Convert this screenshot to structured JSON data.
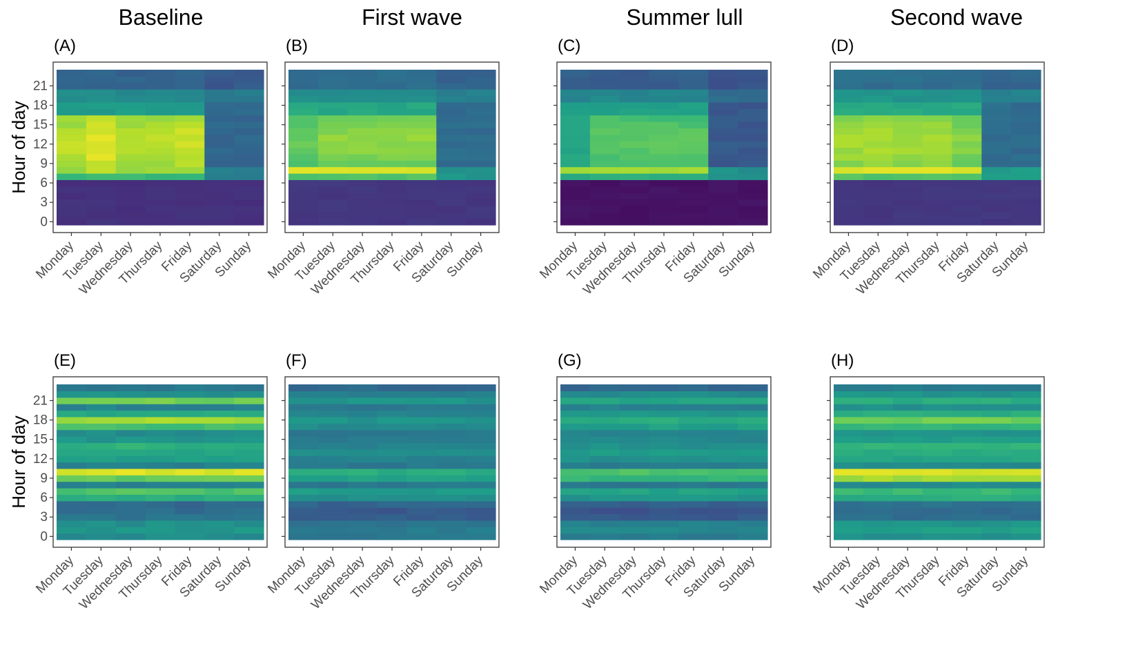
{
  "figure": {
    "column_titles": [
      "Baseline",
      "First wave",
      "Summer lull",
      "Second wave"
    ],
    "ylabel": "Hour of day"
  },
  "colorscale": "viridis",
  "chart_data": [
    {
      "type": "heatmap",
      "panel": "(A)",
      "title": "Baseline",
      "row": 0,
      "col": 0,
      "x": [
        "Monday",
        "Tuesday",
        "Wednesday",
        "Thursday",
        "Friday",
        "Saturday",
        "Sunday"
      ],
      "y_ticks": [
        0,
        3,
        6,
        9,
        12,
        15,
        18,
        21
      ],
      "ylabel": "Hour of day",
      "profile": "top-baseline"
    },
    {
      "type": "heatmap",
      "panel": "(B)",
      "title": "First wave",
      "row": 0,
      "col": 1,
      "x": [
        "Monday",
        "Tuesday",
        "Wednesday",
        "Thursday",
        "Friday",
        "Saturday",
        "Sunday"
      ],
      "y_ticks": [
        0,
        3,
        6,
        9,
        12,
        15,
        18,
        21
      ],
      "ylabel": "",
      "profile": "top-firstwave"
    },
    {
      "type": "heatmap",
      "panel": "(C)",
      "title": "Summer lull",
      "row": 0,
      "col": 2,
      "x": [
        "Monday",
        "Tuesday",
        "Wednesday",
        "Thursday",
        "Friday",
        "Saturday",
        "Sunday"
      ],
      "y_ticks": [
        0,
        3,
        6,
        9,
        12,
        15,
        18,
        21
      ],
      "ylabel": "",
      "profile": "top-summer"
    },
    {
      "type": "heatmap",
      "panel": "(D)",
      "title": "Second wave",
      "row": 0,
      "col": 3,
      "x": [
        "Monday",
        "Tuesday",
        "Wednesday",
        "Thursday",
        "Friday",
        "Saturday",
        "Sunday"
      ],
      "y_ticks": [
        0,
        3,
        6,
        9,
        12,
        15,
        18,
        21
      ],
      "ylabel": "",
      "profile": "top-secondwave"
    },
    {
      "type": "heatmap",
      "panel": "(E)",
      "title": "",
      "row": 1,
      "col": 0,
      "x": [
        "Monday",
        "Tuesday",
        "Wednesday",
        "Thursday",
        "Friday",
        "Saturday",
        "Sunday"
      ],
      "y_ticks": [
        0,
        3,
        6,
        9,
        12,
        15,
        18,
        21
      ],
      "ylabel": "Hour of day",
      "profile": "bottom-baseline"
    },
    {
      "type": "heatmap",
      "panel": "(F)",
      "title": "",
      "row": 1,
      "col": 1,
      "x": [
        "Monday",
        "Tuesday",
        "Wednesday",
        "Thursday",
        "Friday",
        "Saturday",
        "Sunday"
      ],
      "y_ticks": [
        0,
        3,
        6,
        9,
        12,
        15,
        18,
        21
      ],
      "ylabel": "",
      "profile": "bottom-firstwave"
    },
    {
      "type": "heatmap",
      "panel": "(G)",
      "title": "",
      "row": 1,
      "col": 2,
      "x": [
        "Monday",
        "Tuesday",
        "Wednesday",
        "Thursday",
        "Friday",
        "Saturday",
        "Sunday"
      ],
      "y_ticks": [
        0,
        3,
        6,
        9,
        12,
        15,
        18,
        21
      ],
      "ylabel": "",
      "profile": "bottom-summer"
    },
    {
      "type": "heatmap",
      "panel": "(H)",
      "title": "",
      "row": 1,
      "col": 3,
      "x": [
        "Monday",
        "Tuesday",
        "Wednesday",
        "Thursday",
        "Friday",
        "Saturday",
        "Sunday"
      ],
      "y_ticks": [
        0,
        3,
        6,
        9,
        12,
        15,
        18,
        21
      ],
      "ylabel": "",
      "profile": "bottom-secondwave"
    }
  ]
}
